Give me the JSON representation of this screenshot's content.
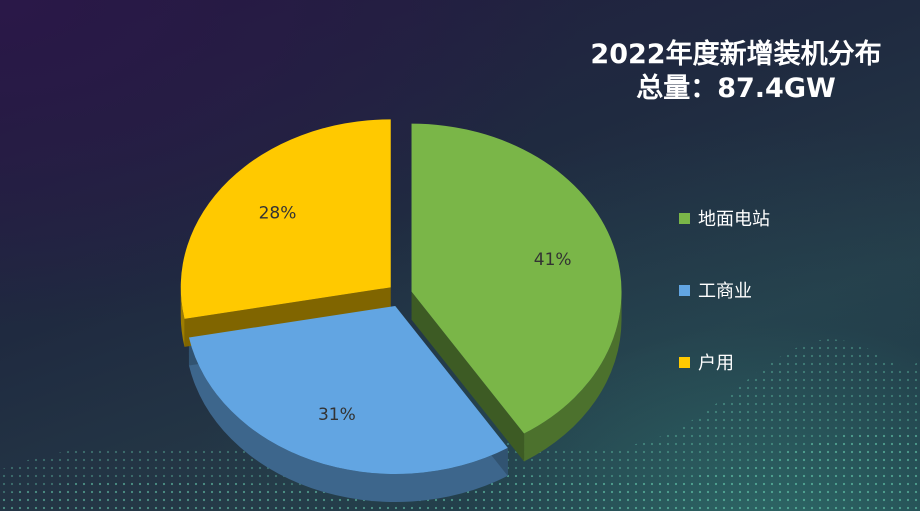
{
  "chart_data": {
    "type": "pie",
    "title": "2022年度新增装机分布",
    "subtitle": "总量：87.4GW",
    "slices": [
      {
        "name": "地面电站",
        "value": 41,
        "label": "41%",
        "color": "#7ab648"
      },
      {
        "name": "工商业",
        "value": 31,
        "label": "31%",
        "color": "#62a5e2"
      },
      {
        "name": "户用",
        "value": 28,
        "label": "28%",
        "color": "#ffc900"
      }
    ],
    "legend_position": "right",
    "three_d": true
  }
}
